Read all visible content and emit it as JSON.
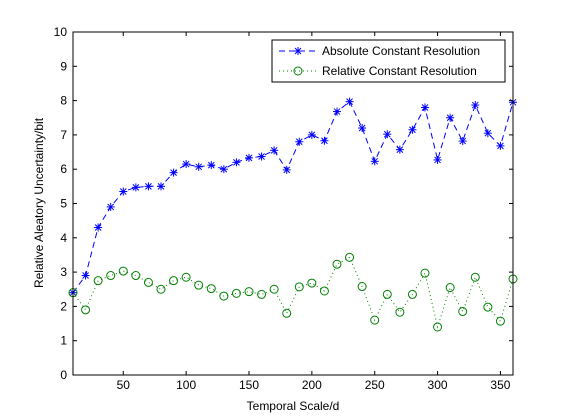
{
  "chart_data": {
    "type": "line",
    "title": "",
    "xlabel": "Temporal Scale/d",
    "ylabel": "Relative Aleatory Uncertainty/bit",
    "xlim": [
      10,
      360
    ],
    "ylim": [
      0,
      10
    ],
    "xticks": [
      50,
      100,
      150,
      200,
      250,
      300,
      350
    ],
    "yticks": [
      0,
      1,
      2,
      3,
      4,
      5,
      6,
      7,
      8,
      9,
      10
    ],
    "grid": false,
    "legend_position": "top-right",
    "x": [
      10,
      20,
      30,
      40,
      50,
      60,
      70,
      80,
      90,
      100,
      110,
      120,
      130,
      140,
      150,
      160,
      170,
      180,
      190,
      200,
      210,
      220,
      230,
      240,
      250,
      260,
      270,
      280,
      290,
      300,
      310,
      320,
      330,
      340,
      350,
      360
    ],
    "series": [
      {
        "name": "Absolute Constant Resolution",
        "color": "#0000ff",
        "line_style": "dashed",
        "marker": "star",
        "values": [
          2.4,
          2.9,
          4.3,
          4.9,
          5.35,
          5.47,
          5.5,
          5.5,
          5.9,
          6.15,
          6.07,
          6.12,
          6.0,
          6.2,
          6.33,
          6.37,
          6.55,
          5.98,
          6.8,
          7.0,
          6.83,
          7.68,
          7.97,
          7.2,
          6.23,
          7.02,
          6.57,
          7.15,
          7.8,
          6.27,
          7.5,
          6.82,
          7.87,
          7.05,
          6.68,
          7.95
        ]
      },
      {
        "name": "Relative Constant Resolution",
        "color": "#008000",
        "line_style": "dotted",
        "marker": "circle",
        "values": [
          2.4,
          1.9,
          2.75,
          2.9,
          3.03,
          2.9,
          2.7,
          2.5,
          2.75,
          2.85,
          2.62,
          2.52,
          2.3,
          2.38,
          2.43,
          2.35,
          2.5,
          1.8,
          2.57,
          2.68,
          2.45,
          3.23,
          3.43,
          2.58,
          1.6,
          2.35,
          1.83,
          2.35,
          2.97,
          1.4,
          2.55,
          1.85,
          2.85,
          1.98,
          1.57,
          2.8
        ]
      }
    ]
  }
}
